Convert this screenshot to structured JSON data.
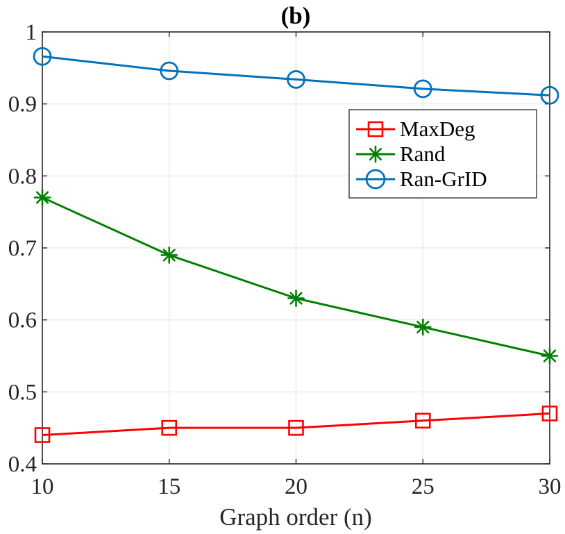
{
  "chart_data": {
    "type": "line",
    "title": "(b)",
    "xlabel": "Graph order (n)",
    "ylabel": "",
    "x": [
      10,
      15,
      20,
      25,
      30
    ],
    "xlim": [
      10,
      30
    ],
    "ylim": [
      0.4,
      1.0
    ],
    "xticks": [
      10,
      15,
      20,
      25,
      30
    ],
    "xtick_labels": [
      "10",
      "15",
      "20",
      "25",
      "30"
    ],
    "yticks": [
      0.4,
      0.5,
      0.6,
      0.7,
      0.8,
      0.9,
      1.0
    ],
    "ytick_labels": [
      "0.4",
      "0.5",
      "0.6",
      "0.7",
      "0.8",
      "0.9",
      "1"
    ],
    "grid": true,
    "legend_position": "top-right",
    "series": [
      {
        "name": "MaxDeg",
        "values": [
          0.44,
          0.45,
          0.45,
          0.46,
          0.47
        ],
        "color": "#ff0000",
        "marker": "square"
      },
      {
        "name": "Rand",
        "values": [
          0.77,
          0.69,
          0.63,
          0.59,
          0.55
        ],
        "color": "#008000",
        "marker": "asterisk"
      },
      {
        "name": "Ran-GrID",
        "values": [
          0.966,
          0.946,
          0.934,
          0.921,
          0.912
        ],
        "color": "#0072bd",
        "marker": "circle"
      }
    ]
  }
}
